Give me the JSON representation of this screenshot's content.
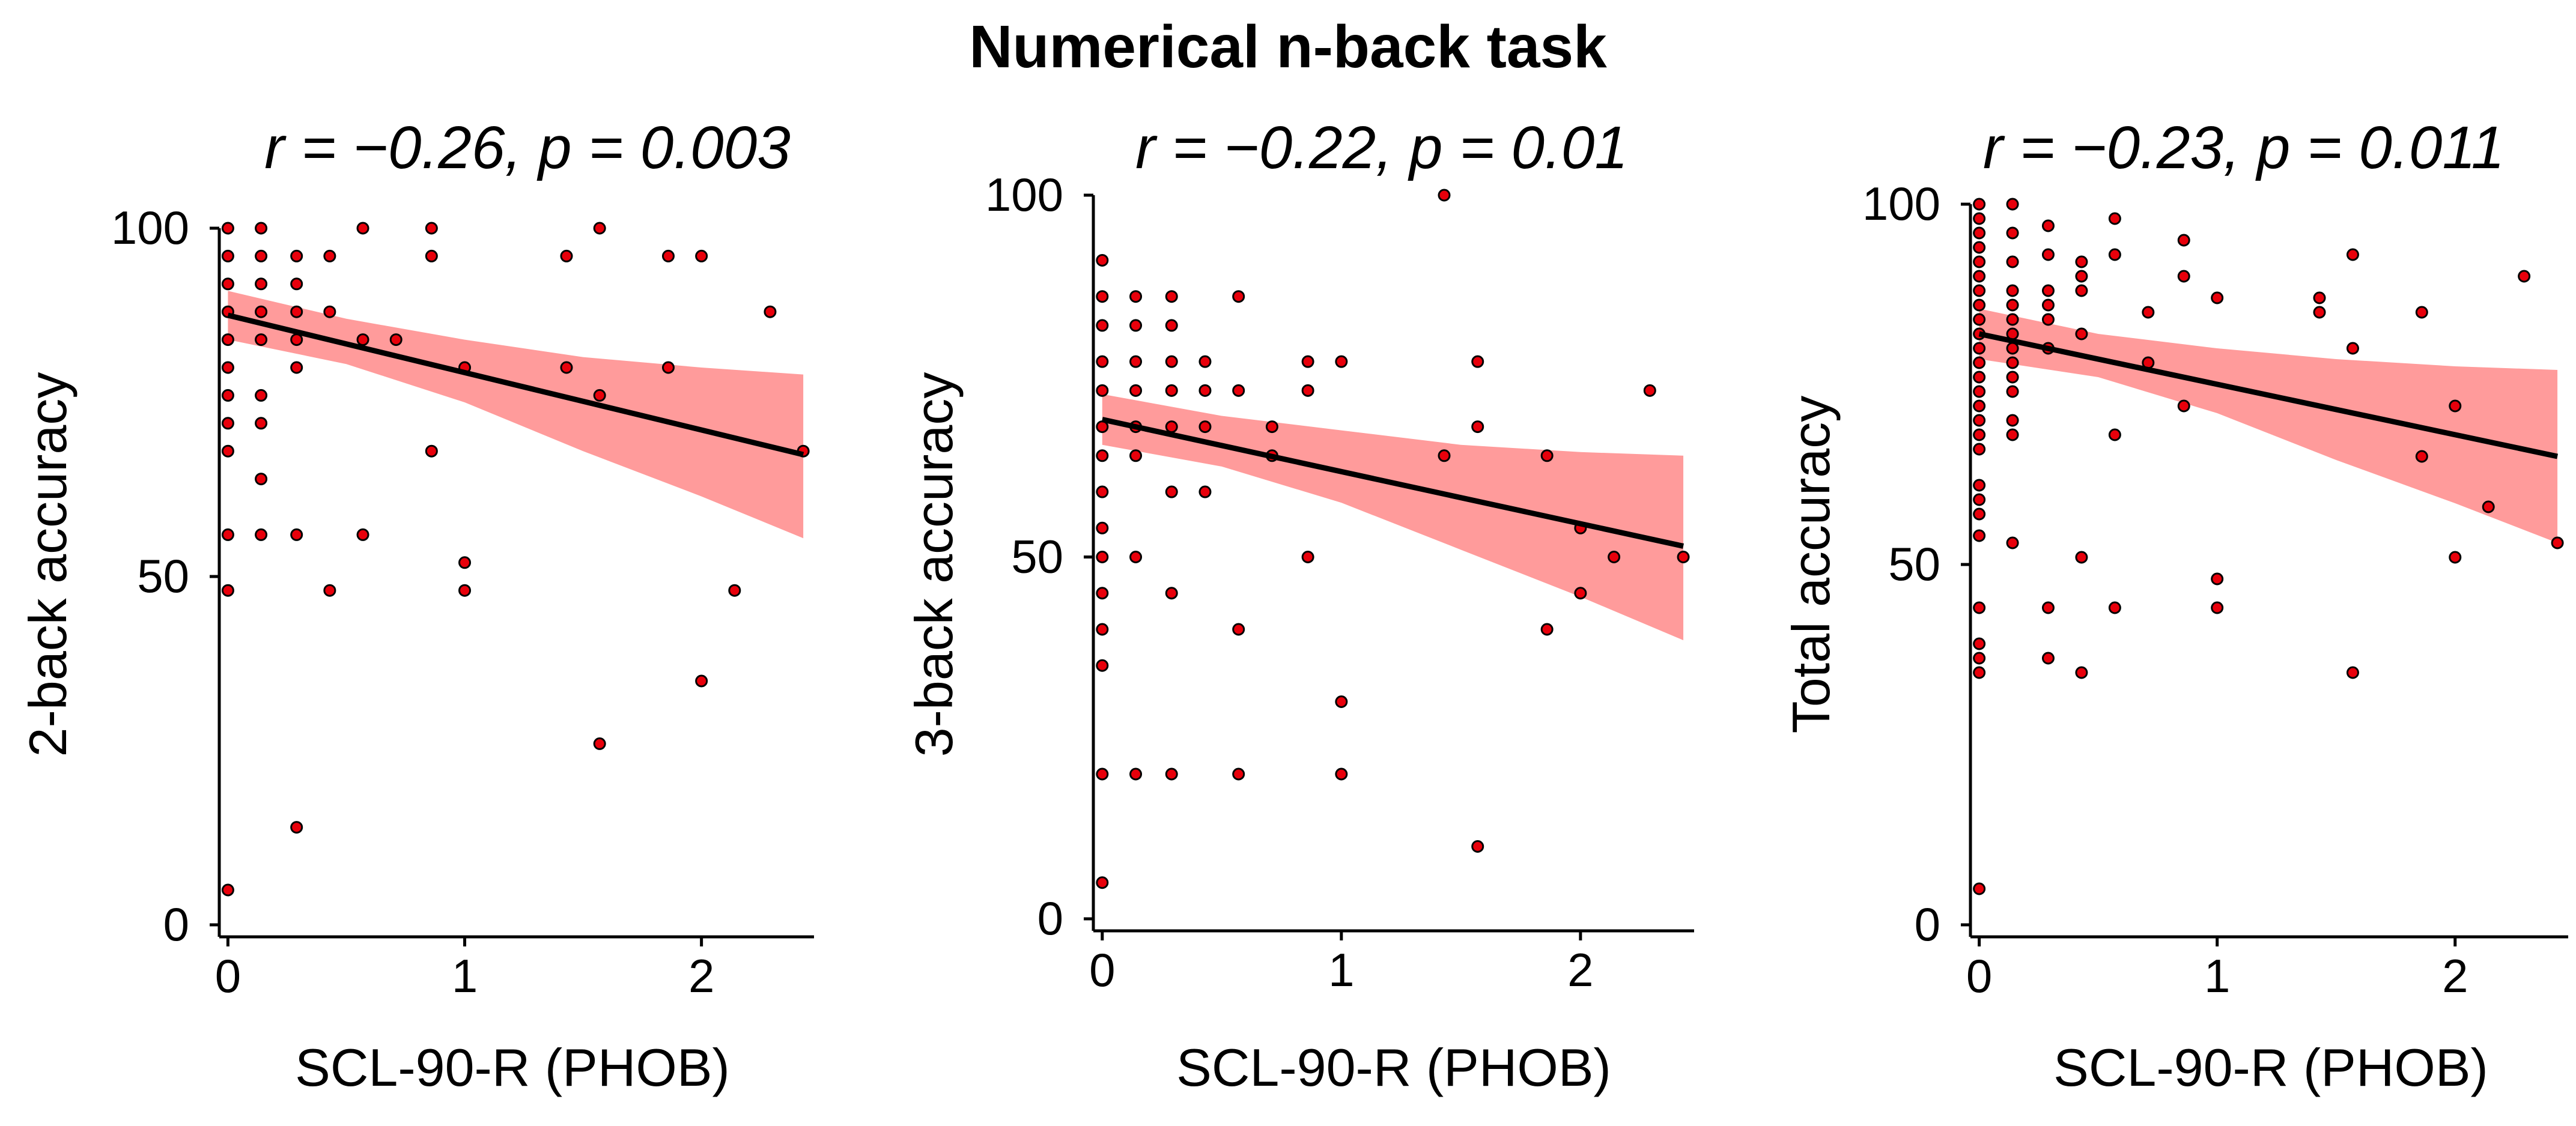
{
  "figure": {
    "title": "Numerical n-back task",
    "colors": {
      "point": "#e8000b",
      "band": "#ff9b9b",
      "line": "#000000"
    }
  },
  "chart_data": [
    {
      "type": "scatter",
      "stat_text": "r = −0.26, p = 0.003",
      "xlabel": "SCL-90-R (PHOB)",
      "ylabel": "2-back accuracy",
      "xlim": [
        -0.1,
        2.45
      ],
      "ylim": [
        0,
        100
      ],
      "xticks": [
        0,
        1,
        2
      ],
      "yticks": [
        0,
        50,
        100
      ],
      "fit": {
        "x": [
          0,
          2.43
        ],
        "y": [
          87.5,
          67.5
        ]
      },
      "ci_upper": [
        [
          0,
          91
        ],
        [
          0.5,
          87
        ],
        [
          1.0,
          84
        ],
        [
          1.5,
          81.5
        ],
        [
          2.0,
          80
        ],
        [
          2.43,
          79
        ]
      ],
      "ci_lower": [
        [
          0,
          84
        ],
        [
          0.5,
          80.5
        ],
        [
          1.0,
          75
        ],
        [
          1.5,
          68
        ],
        [
          2.0,
          61.5
        ],
        [
          2.43,
          55.5
        ]
      ],
      "points": [
        [
          0,
          100
        ],
        [
          0,
          96
        ],
        [
          0,
          92
        ],
        [
          0,
          88
        ],
        [
          0,
          84
        ],
        [
          0,
          80
        ],
        [
          0,
          76
        ],
        [
          0,
          72
        ],
        [
          0,
          68
        ],
        [
          0,
          56
        ],
        [
          0,
          48
        ],
        [
          0,
          5
        ],
        [
          0.14,
          100
        ],
        [
          0.14,
          96
        ],
        [
          0.14,
          92
        ],
        [
          0.14,
          88
        ],
        [
          0.14,
          84
        ],
        [
          0.14,
          76
        ],
        [
          0.14,
          72
        ],
        [
          0.14,
          64
        ],
        [
          0.14,
          56
        ],
        [
          0.29,
          96
        ],
        [
          0.29,
          92
        ],
        [
          0.29,
          88
        ],
        [
          0.29,
          84
        ],
        [
          0.29,
          80
        ],
        [
          0.29,
          56
        ],
        [
          0.29,
          14
        ],
        [
          0.43,
          96
        ],
        [
          0.43,
          88
        ],
        [
          0.43,
          48
        ],
        [
          0.57,
          100
        ],
        [
          0.57,
          84
        ],
        [
          0.57,
          56
        ],
        [
          0.71,
          84
        ],
        [
          0.86,
          100
        ],
        [
          0.86,
          96
        ],
        [
          0.86,
          68
        ],
        [
          1.0,
          80
        ],
        [
          1.0,
          52
        ],
        [
          1.0,
          48
        ],
        [
          1.43,
          96
        ],
        [
          1.43,
          80
        ],
        [
          1.57,
          100
        ],
        [
          1.57,
          76
        ],
        [
          1.57,
          26
        ],
        [
          1.86,
          96
        ],
        [
          1.86,
          80
        ],
        [
          2.0,
          96
        ],
        [
          2.0,
          35
        ],
        [
          2.14,
          48
        ],
        [
          2.29,
          88
        ],
        [
          2.43,
          68
        ]
      ]
    },
    {
      "type": "scatter",
      "stat_text": "r = −0.22, p = 0.01",
      "xlabel": "SCL-90-R (PHOB)",
      "ylabel": "3-back accuracy",
      "xlim": [
        -0.1,
        2.45
      ],
      "ylim": [
        0,
        100
      ],
      "xticks": [
        0,
        1,
        2
      ],
      "yticks": [
        0,
        50,
        100
      ],
      "fit": {
        "x": [
          0,
          2.43
        ],
        "y": [
          69,
          51.5
        ]
      },
      "ci_upper": [
        [
          0,
          72.5
        ],
        [
          0.5,
          69.5
        ],
        [
          1.0,
          67.5
        ],
        [
          1.5,
          65.5
        ],
        [
          2.0,
          64.5
        ],
        [
          2.43,
          64
        ]
      ],
      "ci_lower": [
        [
          0,
          65.5
        ],
        [
          0.5,
          62.5
        ],
        [
          1.0,
          57.5
        ],
        [
          1.5,
          51
        ],
        [
          2.0,
          44.5
        ],
        [
          2.43,
          38.5
        ]
      ],
      "points": [
        [
          0,
          91
        ],
        [
          0,
          86
        ],
        [
          0,
          82
        ],
        [
          0,
          77
        ],
        [
          0,
          73
        ],
        [
          0,
          68
        ],
        [
          0,
          64
        ],
        [
          0,
          59
        ],
        [
          0,
          54
        ],
        [
          0,
          50
        ],
        [
          0,
          45
        ],
        [
          0,
          40
        ],
        [
          0,
          35
        ],
        [
          0,
          20
        ],
        [
          0,
          5
        ],
        [
          0.14,
          86
        ],
        [
          0.14,
          82
        ],
        [
          0.14,
          77
        ],
        [
          0.14,
          73
        ],
        [
          0.14,
          68
        ],
        [
          0.14,
          64
        ],
        [
          0.14,
          50
        ],
        [
          0.14,
          20
        ],
        [
          0.29,
          86
        ],
        [
          0.29,
          82
        ],
        [
          0.29,
          77
        ],
        [
          0.29,
          73
        ],
        [
          0.29,
          68
        ],
        [
          0.29,
          59
        ],
        [
          0.29,
          45
        ],
        [
          0.29,
          20
        ],
        [
          0.43,
          77
        ],
        [
          0.43,
          73
        ],
        [
          0.43,
          68
        ],
        [
          0.43,
          59
        ],
        [
          0.57,
          86
        ],
        [
          0.57,
          73
        ],
        [
          0.57,
          40
        ],
        [
          0.57,
          20
        ],
        [
          0.71,
          68
        ],
        [
          0.71,
          64
        ],
        [
          0.86,
          77
        ],
        [
          0.86,
          73
        ],
        [
          0.86,
          50
        ],
        [
          1.0,
          77
        ],
        [
          1.0,
          30
        ],
        [
          1.0,
          20
        ],
        [
          1.43,
          100
        ],
        [
          1.43,
          64
        ],
        [
          1.57,
          77
        ],
        [
          1.57,
          68
        ],
        [
          1.57,
          10
        ],
        [
          1.86,
          64
        ],
        [
          1.86,
          40
        ],
        [
          2.0,
          54
        ],
        [
          2.0,
          45
        ],
        [
          2.14,
          50
        ],
        [
          2.29,
          73
        ],
        [
          2.43,
          50
        ]
      ]
    },
    {
      "type": "scatter",
      "stat_text": "r = −0.23, p = 0.011",
      "xlabel": "SCL-90-R (PHOB)",
      "ylabel": "Total accuracy",
      "xlim": [
        -0.1,
        2.45
      ],
      "ylim": [
        0,
        100
      ],
      "xticks": [
        0,
        1,
        2
      ],
      "yticks": [
        0,
        50,
        100
      ],
      "fit": {
        "x": [
          0,
          2.43
        ],
        "y": [
          82,
          65
        ]
      },
      "ci_upper": [
        [
          0,
          85.5
        ],
        [
          0.5,
          82
        ],
        [
          1.0,
          80
        ],
        [
          1.5,
          78.5
        ],
        [
          2.0,
          77.5
        ],
        [
          2.43,
          77
        ]
      ],
      "ci_lower": [
        [
          0,
          78.5
        ],
        [
          0.5,
          76
        ],
        [
          1.0,
          71
        ],
        [
          1.5,
          64.5
        ],
        [
          2.0,
          58.5
        ],
        [
          2.43,
          53
        ]
      ],
      "points": [
        [
          0,
          100
        ],
        [
          0,
          98
        ],
        [
          0,
          96
        ],
        [
          0,
          94
        ],
        [
          0,
          92
        ],
        [
          0,
          90
        ],
        [
          0,
          88
        ],
        [
          0,
          86
        ],
        [
          0,
          84
        ],
        [
          0,
          82
        ],
        [
          0,
          80
        ],
        [
          0,
          78
        ],
        [
          0,
          76
        ],
        [
          0,
          74
        ],
        [
          0,
          72
        ],
        [
          0,
          70
        ],
        [
          0,
          68
        ],
        [
          0,
          66
        ],
        [
          0,
          61
        ],
        [
          0,
          59
        ],
        [
          0,
          57
        ],
        [
          0,
          54
        ],
        [
          0,
          44
        ],
        [
          0,
          39
        ],
        [
          0,
          37
        ],
        [
          0,
          35
        ],
        [
          0,
          5
        ],
        [
          0.14,
          100
        ],
        [
          0.14,
          96
        ],
        [
          0.14,
          92
        ],
        [
          0.14,
          88
        ],
        [
          0.14,
          86
        ],
        [
          0.14,
          84
        ],
        [
          0.14,
          82
        ],
        [
          0.14,
          80
        ],
        [
          0.14,
          78
        ],
        [
          0.14,
          76
        ],
        [
          0.14,
          74
        ],
        [
          0.14,
          70
        ],
        [
          0.14,
          68
        ],
        [
          0.14,
          53
        ],
        [
          0.29,
          97
        ],
        [
          0.29,
          93
        ],
        [
          0.29,
          88
        ],
        [
          0.29,
          86
        ],
        [
          0.29,
          84
        ],
        [
          0.29,
          80
        ],
        [
          0.29,
          44
        ],
        [
          0.29,
          37
        ],
        [
          0.43,
          92
        ],
        [
          0.43,
          90
        ],
        [
          0.43,
          88
        ],
        [
          0.43,
          82
        ],
        [
          0.43,
          51
        ],
        [
          0.43,
          35
        ],
        [
          0.57,
          98
        ],
        [
          0.57,
          93
        ],
        [
          0.57,
          68
        ],
        [
          0.57,
          44
        ],
        [
          0.71,
          85
        ],
        [
          0.71,
          78
        ],
        [
          0.86,
          95
        ],
        [
          0.86,
          90
        ],
        [
          0.86,
          72
        ],
        [
          1.0,
          87
        ],
        [
          1.0,
          48
        ],
        [
          1.0,
          44
        ],
        [
          1.43,
          87
        ],
        [
          1.43,
          85
        ],
        [
          1.57,
          93
        ],
        [
          1.57,
          80
        ],
        [
          1.57,
          35
        ],
        [
          1.86,
          85
        ],
        [
          1.86,
          65
        ],
        [
          2.0,
          72
        ],
        [
          2.0,
          51
        ],
        [
          2.14,
          58
        ],
        [
          2.29,
          90
        ],
        [
          2.43,
          53
        ]
      ]
    }
  ]
}
